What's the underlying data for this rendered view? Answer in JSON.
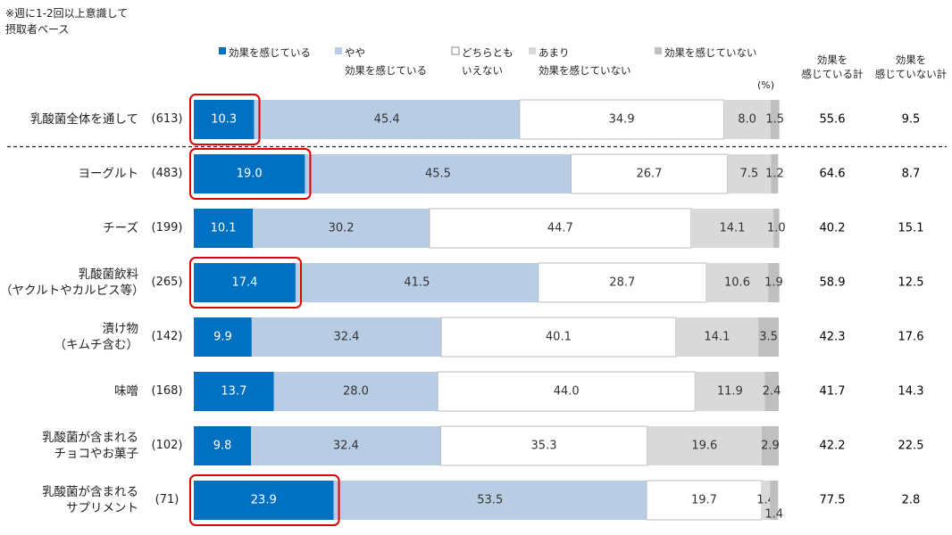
{
  "chart_data": {
    "type": "stacked-bar-horizontal",
    "note": "※週に1-2回以上意識して\n摂取者ベース",
    "unit": "(%)",
    "categories": [
      "乳酸菌全体を通して",
      "ヨーグルト",
      "チーズ",
      "乳酸菌飲料\n（ヤクルトやカルピス等）",
      "漬け物\n（キムチ含む）",
      "味噌",
      "乳酸菌が含まれる\nチョコやお菓子",
      "乳酸菌が含まれる\nサプリメント"
    ],
    "sample_sizes": [
      "(613)",
      "(483)",
      "(199)",
      "(265)",
      "(142)",
      "(168)",
      "(102)",
      "(71)"
    ],
    "xlim": [
      0,
      100
    ],
    "series": [
      {
        "name": "効果を感じている",
        "color": "#0070c0",
        "values": [
          10.3,
          19.0,
          10.1,
          17.4,
          9.9,
          13.7,
          9.8,
          23.9
        ],
        "value_labels": [
          "10.3",
          "19.0",
          "10.1",
          "17.4",
          "9.9",
          "13.7",
          "9.8",
          "23.9"
        ]
      },
      {
        "name": "やや\n効果を感じている",
        "color": "#b8cce4",
        "values": [
          45.4,
          45.5,
          30.2,
          41.5,
          32.4,
          28.0,
          32.4,
          53.5
        ],
        "value_labels": [
          "45.4",
          "45.5",
          "30.2",
          "41.5",
          "32.4",
          "28.0",
          "32.4",
          "53.5"
        ]
      },
      {
        "name": "どちらとも\nいえない",
        "color": "#ffffff",
        "values": [
          34.9,
          26.7,
          44.7,
          28.7,
          40.1,
          44.0,
          35.3,
          19.7
        ],
        "value_labels": [
          "34.9",
          "26.7",
          "44.7",
          "28.7",
          "40.1",
          "44.0",
          "35.3",
          "19.7"
        ]
      },
      {
        "name": "あまり\n効果を感じていない",
        "color": "#d9d9d9",
        "values": [
          8.0,
          7.5,
          14.1,
          10.6,
          14.1,
          11.9,
          19.6,
          1.4
        ],
        "value_labels": [
          "8.0",
          "7.5",
          "14.1",
          "10.6",
          "14.1",
          "11.9",
          "19.6",
          "1.4"
        ]
      },
      {
        "name": "効果を感じていない",
        "color": "#bfbfbf",
        "values": [
          1.5,
          1.2,
          1.0,
          1.9,
          3.5,
          2.4,
          2.9,
          1.4
        ],
        "value_labels": [
          "1.5",
          "1.2",
          "1.0",
          "1.9",
          "3.5",
          "2.4",
          "2.9",
          "1.4"
        ]
      }
    ],
    "totals": [
      {
        "name": "効果を\n感じている計",
        "values": [
          55.6,
          64.6,
          40.2,
          58.9,
          42.3,
          41.7,
          42.2,
          77.5
        ]
      },
      {
        "name": "効果を\n感じていない計",
        "values": [
          9.5,
          8.7,
          15.1,
          12.5,
          17.6,
          14.3,
          22.5,
          2.8
        ]
      }
    ],
    "highlight": [
      true,
      true,
      false,
      true,
      false,
      false,
      false,
      true
    ],
    "highlight_color": "#e00000",
    "separator_after": 0
  }
}
